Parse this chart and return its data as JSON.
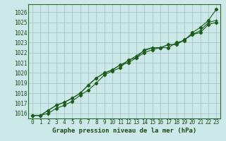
{
  "title": "Graphe pression niveau de la mer (hPa)",
  "background_color": "#cce8e8",
  "grid_color": "#a8c8c8",
  "line_color": "#1a5c1a",
  "xlim": [
    -0.5,
    23.5
  ],
  "ylim": [
    1015.5,
    1026.8
  ],
  "yticks": [
    1016,
    1017,
    1018,
    1019,
    1020,
    1021,
    1022,
    1023,
    1024,
    1025,
    1026
  ],
  "xticks": [
    0,
    1,
    2,
    3,
    4,
    5,
    6,
    7,
    8,
    9,
    10,
    11,
    12,
    13,
    14,
    15,
    16,
    17,
    18,
    19,
    20,
    21,
    22,
    23
  ],
  "series1": [
    1015.8,
    1015.8,
    1016.0,
    1016.5,
    1016.8,
    1017.2,
    1017.8,
    1018.3,
    1019.0,
    1019.8,
    1020.2,
    1020.5,
    1021.3,
    1021.5,
    1022.3,
    1022.5,
    1022.5,
    1022.5,
    1023.0,
    1023.2,
    1024.0,
    1024.5,
    1025.2,
    1026.3
  ],
  "series2": [
    1015.8,
    1015.8,
    1016.3,
    1016.8,
    1017.1,
    1017.5,
    1018.0,
    1018.8,
    1019.5,
    1020.0,
    1020.3,
    1020.8,
    1021.2,
    1021.7,
    1022.2,
    1022.5,
    1022.5,
    1022.8,
    1022.8,
    1023.3,
    1023.8,
    1024.2,
    1025.0,
    1025.2
  ],
  "series3": [
    1015.8,
    1015.8,
    1016.3,
    1016.8,
    1017.1,
    1017.5,
    1018.0,
    1018.8,
    1019.5,
    1020.0,
    1020.3,
    1020.8,
    1021.0,
    1021.5,
    1022.0,
    1022.3,
    1022.5,
    1022.8,
    1022.8,
    1023.3,
    1023.8,
    1024.0,
    1024.8,
    1025.0
  ],
  "title_fontsize": 6.5,
  "tick_fontsize": 5.5
}
